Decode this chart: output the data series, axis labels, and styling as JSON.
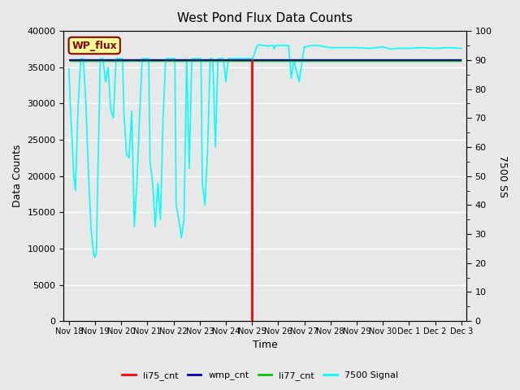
{
  "title": "West Pond Flux Data Counts",
  "xlabel": "Time",
  "ylabel_left": "Data Counts",
  "ylabel_right": "7500 SS",
  "ylim_left": [
    0,
    40000
  ],
  "ylim_right": [
    0,
    100
  ],
  "background_color": "#e8e8e8",
  "fig_bg_color": "#e8e8e8",
  "wp_flux_label": "WP_flux",
  "legend_entries": [
    "li75_cnt",
    "wmp_cnt",
    "li77_cnt",
    "7500 Signal"
  ],
  "legend_colors": [
    "#ff0000",
    "#0000aa",
    "#00cc00",
    "#00ffff"
  ],
  "x_tick_labels": [
    "Nov 18",
    "Nov 19",
    "Nov 20",
    "Nov 21",
    "Nov 22",
    "Nov 23",
    "Nov 24",
    "Nov 25",
    "Nov 26",
    "Nov 27",
    "Nov 28",
    "Nov 29",
    "Nov 30",
    "Dec 1",
    "Dec 2",
    "Dec 3"
  ],
  "x_tick_positions": [
    0,
    1,
    2,
    3,
    4,
    5,
    6,
    7,
    8,
    9,
    10,
    11,
    12,
    13,
    14,
    15
  ],
  "xlim": [
    -0.2,
    15.2
  ],
  "li77_cnt_value": 36000,
  "wmp_cnt_value": 36000,
  "li75_drop_x": 7.0,
  "li75_drop_y_top": 36000,
  "li75_drop_y_bot": 0,
  "cyan_x_before": [
    0.0,
    0.05,
    0.12,
    0.18,
    0.25,
    0.35,
    0.45,
    0.55,
    0.65,
    0.75,
    0.85,
    0.95,
    1.0,
    1.05,
    1.1,
    1.2,
    1.3,
    1.4,
    1.5,
    1.6,
    1.7,
    1.8,
    1.9,
    2.0,
    2.05,
    2.1,
    2.2,
    2.3,
    2.4,
    2.5,
    2.6,
    2.7,
    2.8,
    2.9,
    3.0,
    3.05,
    3.1,
    3.2,
    3.3,
    3.4,
    3.5,
    3.6,
    3.7,
    3.8,
    3.9,
    4.0,
    4.05,
    4.1,
    4.2,
    4.3,
    4.4,
    4.5,
    4.6,
    4.7,
    4.8,
    4.9,
    5.0,
    5.05,
    5.1,
    5.2,
    5.3,
    5.4,
    5.5,
    5.6,
    5.7,
    5.8,
    5.9,
    6.0,
    6.1,
    6.2,
    6.3,
    6.5,
    6.7,
    6.9,
    7.0
  ],
  "cyan_y_before": [
    34800,
    30000,
    25000,
    20000,
    18000,
    29500,
    36200,
    36200,
    30000,
    20000,
    12500,
    9000,
    8800,
    9500,
    19000,
    36200,
    36200,
    33000,
    35000,
    29000,
    28000,
    36200,
    36200,
    36200,
    36200,
    29000,
    23000,
    22500,
    29000,
    13000,
    19000,
    28000,
    36200,
    36200,
    36200,
    36200,
    22000,
    19000,
    13000,
    19000,
    14000,
    28000,
    36200,
    36200,
    36200,
    36200,
    36200,
    16000,
    14000,
    11500,
    14000,
    36200,
    21000,
    36200,
    36200,
    36200,
    36200,
    36200,
    19000,
    16000,
    23500,
    36200,
    36200,
    24000,
    36200,
    36200,
    36200,
    33000,
    36200,
    36200,
    36200,
    36200,
    36200,
    36200,
    36200
  ],
  "cyan_x_after": [
    7.0,
    7.05,
    7.1,
    7.15,
    7.2,
    7.3,
    7.4,
    7.5,
    7.6,
    7.7,
    7.8,
    7.85,
    7.9,
    8.0,
    8.2,
    8.4,
    8.5,
    8.6,
    8.8,
    9.0,
    9.3,
    9.5,
    10.0,
    10.5,
    11.0,
    11.5,
    12.0,
    12.3,
    12.5,
    13.0,
    13.5,
    14.0,
    14.5,
    15.0
  ],
  "cyan_y_after": [
    36200,
    36400,
    37000,
    37500,
    38000,
    38100,
    38000,
    38000,
    37900,
    38000,
    38000,
    37500,
    38000,
    38000,
    38000,
    38000,
    33500,
    36000,
    33000,
    37800,
    38000,
    38000,
    37700,
    37700,
    37700,
    37600,
    37800,
    37500,
    37600,
    37600,
    37700,
    37600,
    37700,
    37600
  ]
}
